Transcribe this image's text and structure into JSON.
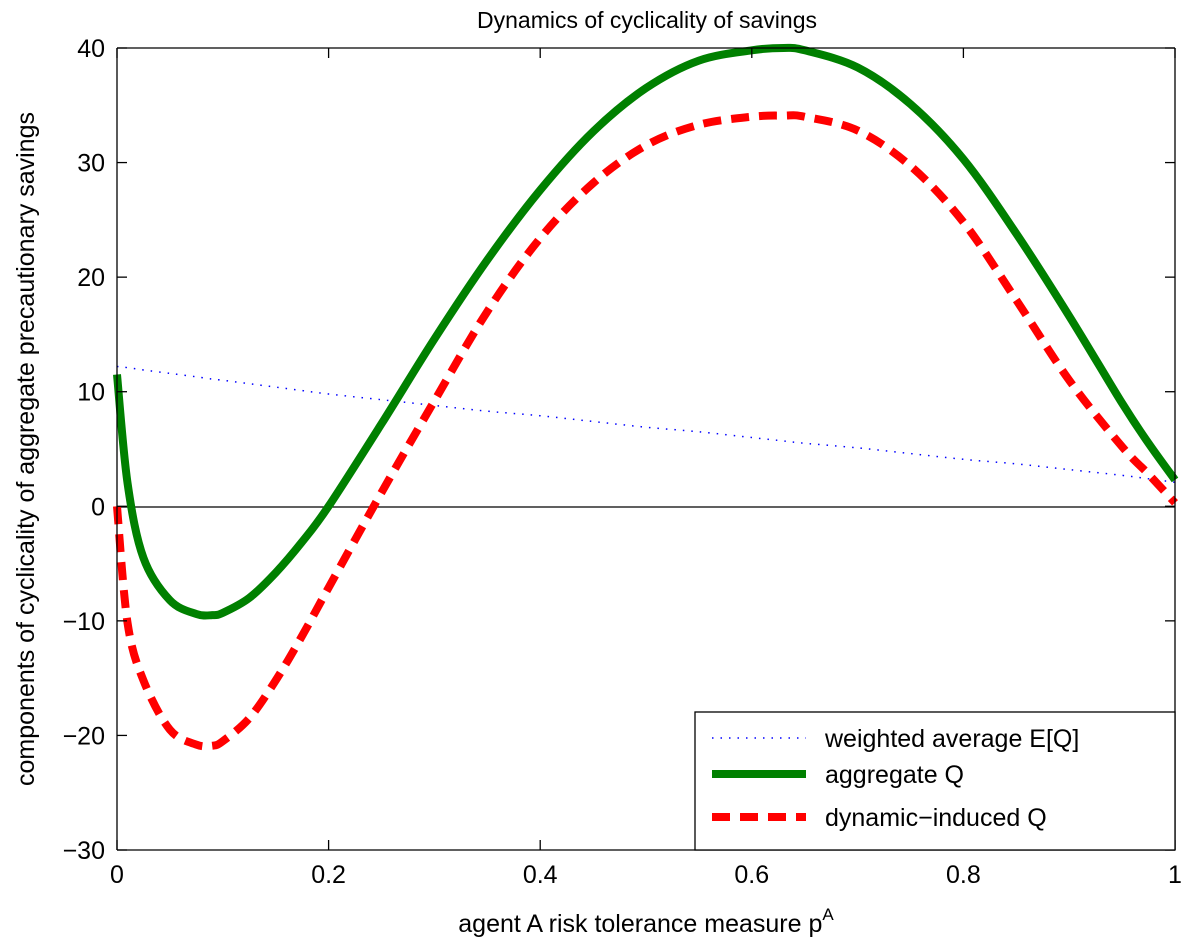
{
  "chart_data": {
    "type": "line",
    "title": "Dynamics of cyclicality of savings",
    "xlabel": "agent A risk tolerance measure p",
    "xlabel_superscript": "A",
    "ylabel": "components of cyclicality of aggregate precautionary savings",
    "xlim": [
      0,
      1
    ],
    "ylim": [
      -30,
      40
    ],
    "xticks": [
      0,
      0.2,
      0.4,
      0.6,
      0.8,
      1
    ],
    "xtick_labels": [
      "0",
      "0.2",
      "0.4",
      "0.6",
      "0.8",
      "1"
    ],
    "yticks": [
      -30,
      -20,
      -10,
      0,
      10,
      20,
      30,
      40
    ],
    "ytick_labels": [
      "−30",
      "−20",
      "−10",
      "0",
      "10",
      "20",
      "30",
      "40"
    ],
    "zero_line": true,
    "grid": false,
    "legend_position": "bottom-right",
    "x": [
      0,
      0.01,
      0.025,
      0.05,
      0.075,
      0.09,
      0.1,
      0.125,
      0.15,
      0.175,
      0.2,
      0.25,
      0.3,
      0.35,
      0.4,
      0.45,
      0.5,
      0.55,
      0.6,
      0.63,
      0.65,
      0.7,
      0.75,
      0.8,
      0.85,
      0.9,
      0.95,
      0.975,
      1
    ],
    "series": [
      {
        "name": "weighted average E[Q]",
        "color": "#0000ff",
        "style": "dotted",
        "values": [
          12.2,
          12.1,
          11.9,
          11.6,
          11.3,
          11.1,
          11.0,
          10.7,
          10.4,
          10.1,
          9.8,
          9.3,
          8.8,
          8.3,
          7.9,
          7.4,
          6.9,
          6.5,
          6.0,
          5.7,
          5.5,
          5.1,
          4.6,
          4.1,
          3.7,
          3.2,
          2.7,
          2.4,
          2.1
        ]
      },
      {
        "name": "aggregate Q",
        "color": "#008000",
        "style": "solid",
        "values": [
          11.5,
          2.0,
          -4.5,
          -8.2,
          -9.4,
          -9.5,
          -9.3,
          -8.0,
          -5.8,
          -3.1,
          0.0,
          7.2,
          14.6,
          21.5,
          27.6,
          32.7,
          36.5,
          38.9,
          39.8,
          40.0,
          39.8,
          38.3,
          35.1,
          30.3,
          23.8,
          16.6,
          9.0,
          5.5,
          2.3
        ]
      },
      {
        "name": "dynamic−induced Q",
        "color": "#ff0000",
        "style": "dashed",
        "values": [
          0,
          -10.2,
          -15.2,
          -19.5,
          -20.8,
          -20.9,
          -20.5,
          -18.5,
          -15.2,
          -11.3,
          -7.1,
          1.2,
          9.2,
          17.0,
          23.4,
          28.2,
          31.5,
          33.3,
          34.0,
          34.1,
          34.0,
          32.8,
          29.7,
          24.8,
          18.0,
          11.0,
          5.2,
          2.8,
          0.3
        ]
      }
    ]
  }
}
